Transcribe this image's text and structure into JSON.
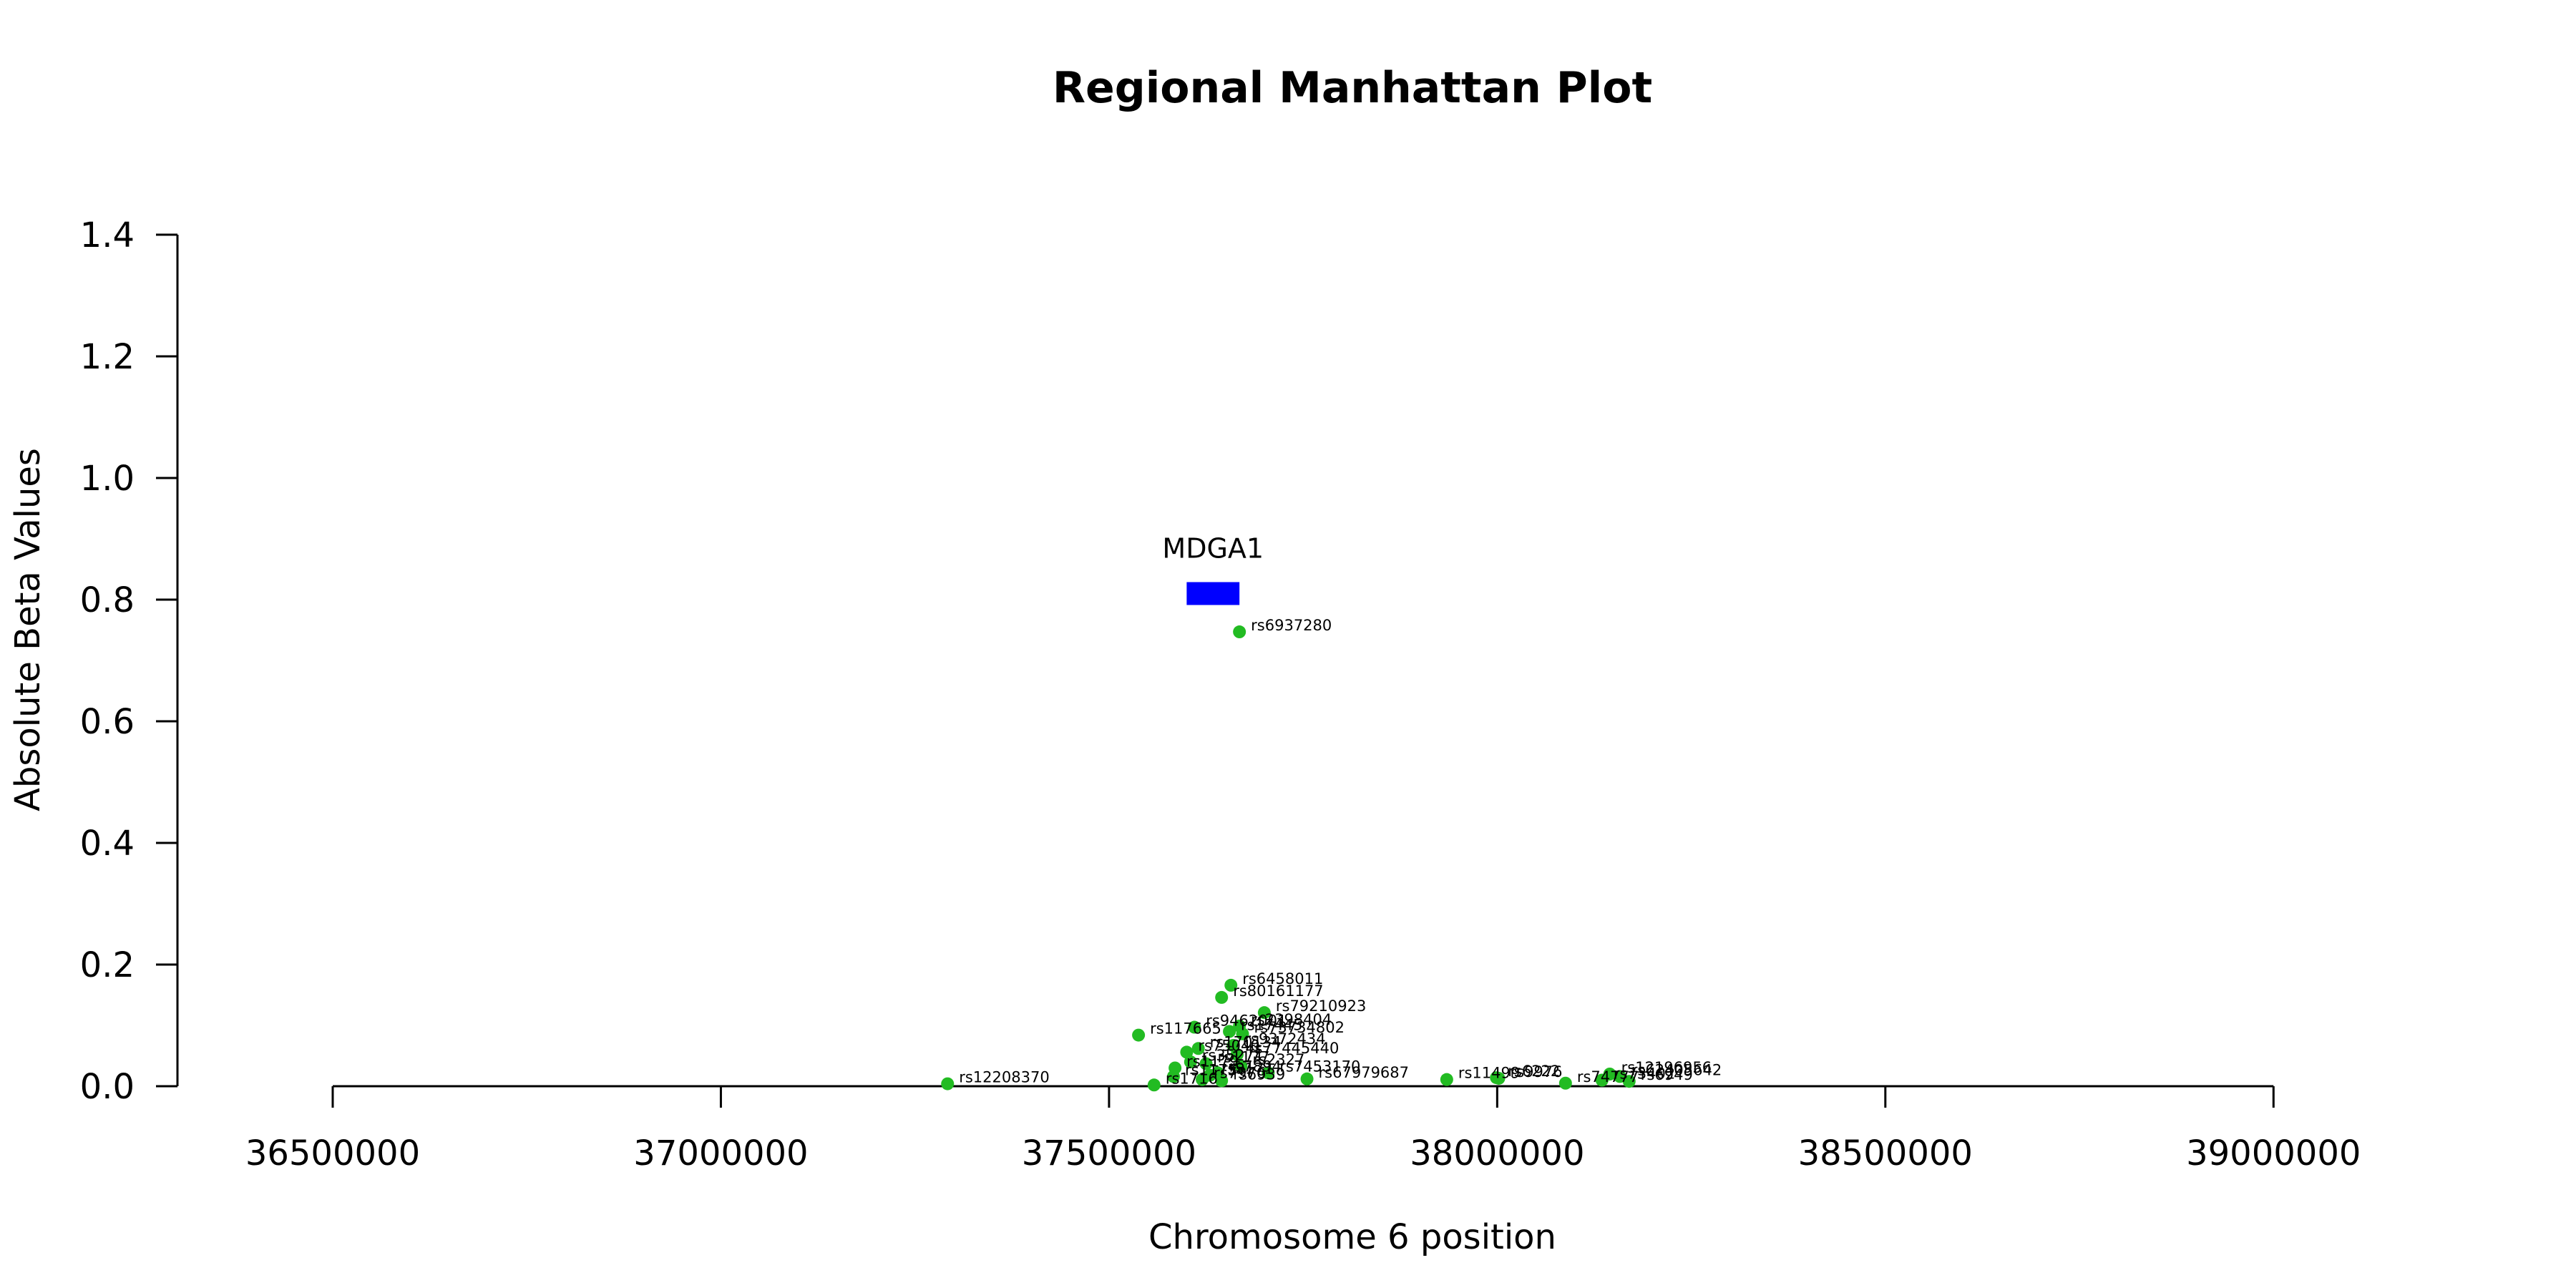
{
  "chart_data": {
    "type": "scatter",
    "title": "Regional Manhattan Plot",
    "xlabel": "Chromosome 6 position",
    "ylabel": "Absolute Beta Values",
    "xlim": [
      36300000,
      39150000
    ],
    "ylim": [
      0,
      1.4
    ],
    "x_ticks": [
      36500000,
      37000000,
      37500000,
      38000000,
      38500000,
      39000000
    ],
    "x_tick_labels": [
      "36500000",
      "37000000",
      "37500000",
      "38000000",
      "38500000",
      "39000000"
    ],
    "y_ticks": [
      0.0,
      0.2,
      0.4,
      0.6,
      0.8,
      1.0,
      1.2,
      1.4
    ],
    "y_tick_labels": [
      "0.0",
      "0.2",
      "0.4",
      "0.6",
      "0.8",
      "1.0",
      "1.2",
      "1.4"
    ],
    "point_color": "#22bb22",
    "gene_color": "#0000ff",
    "genes": [
      {
        "name": "MDGA1",
        "start": 37600000,
        "end": 37668000,
        "y": 0.81
      }
    ],
    "points": [
      {
        "label": "rs6937280",
        "x": 37668000,
        "y": 0.747
      },
      {
        "label": "rs6458011",
        "x": 37657000,
        "y": 0.166
      },
      {
        "label": "rs80161177",
        "x": 37645000,
        "y": 0.146
      },
      {
        "label": "rs79210923",
        "x": 37700000,
        "y": 0.121
      },
      {
        "label": "rs117665",
        "x": 37538000,
        "y": 0.084
      },
      {
        "label": "rs9462001",
        "x": 37610000,
        "y": 0.097
      },
      {
        "label": "rs2398404",
        "x": 37668000,
        "y": 0.099
      },
      {
        "label": "rs17445",
        "x": 37655000,
        "y": 0.09
      },
      {
        "label": "rs73734802",
        "x": 37672000,
        "y": 0.086
      },
      {
        "label": "rs170134",
        "x": 37615000,
        "y": 0.062
      },
      {
        "label": "rs9372434",
        "x": 37660000,
        "y": 0.067
      },
      {
        "label": "rs75040",
        "x": 37600000,
        "y": 0.056
      },
      {
        "label": "rs77445440",
        "x": 37665000,
        "y": 0.052
      },
      {
        "label": "rs35271",
        "x": 37605000,
        "y": 0.04
      },
      {
        "label": "rs1177",
        "x": 37625000,
        "y": 0.037
      },
      {
        "label": "rs2327",
        "x": 37670000,
        "y": 0.033
      },
      {
        "label": "rs1179",
        "x": 37585000,
        "y": 0.03
      },
      {
        "label": "rs7894",
        "x": 37640000,
        "y": 0.022
      },
      {
        "label": "rs9171",
        "x": 37630000,
        "y": 0.018
      },
      {
        "label": "rs7453170",
        "x": 37705000,
        "y": 0.022
      },
      {
        "label": "rs1175",
        "x": 37583000,
        "y": 0.016
      },
      {
        "label": "rs7976",
        "x": 37620000,
        "y": 0.011
      },
      {
        "label": "rs6939",
        "x": 37645000,
        "y": 0.009
      },
      {
        "label": "rs67979687",
        "x": 37755000,
        "y": 0.012
      },
      {
        "label": "rs12208370",
        "x": 37292000,
        "y": 0.004
      },
      {
        "label": "rs1716",
        "x": 37558000,
        "y": 0.002
      },
      {
        "label": "rs11499",
        "x": 37935000,
        "y": 0.011
      },
      {
        "label": "rs6222",
        "x": 37999000,
        "y": 0.014
      },
      {
        "label": "rs9976",
        "x": 38002000,
        "y": 0.013
      },
      {
        "label": "rs12196956",
        "x": 38145000,
        "y": 0.02
      },
      {
        "label": "rs62405642",
        "x": 38158000,
        "y": 0.016
      },
      {
        "label": "rs74777",
        "x": 38088000,
        "y": 0.005
      },
      {
        "label": "rs73402",
        "x": 38135000,
        "y": 0.01
      },
      {
        "label": "rs6949",
        "x": 38170000,
        "y": 0.008
      }
    ]
  }
}
